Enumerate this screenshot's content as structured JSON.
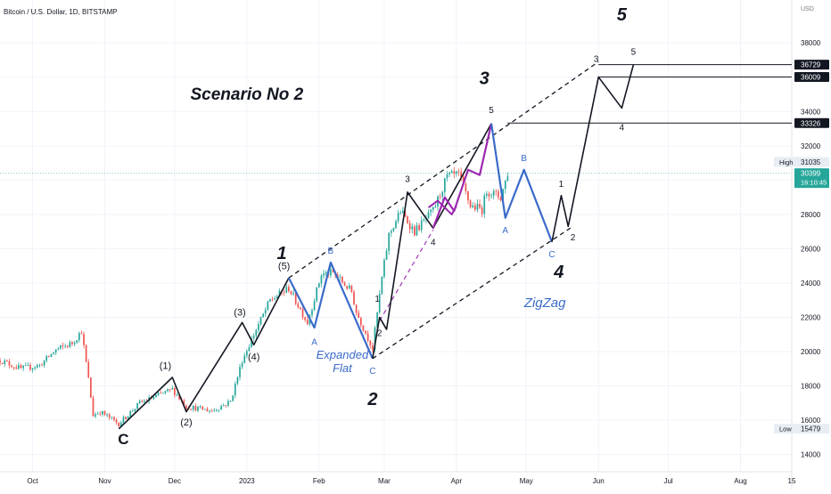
{
  "header": {
    "title": "Bitcoin / U.S. Dollar, 1D, BITSTAMP",
    "currency": "USD"
  },
  "chart_data": {
    "type": "candlestick",
    "title": "Bitcoin / U.S. Dollar, 1D, BITSTAMP",
    "xlim": [
      "2022-10-01",
      "2023-09-06"
    ],
    "ylim": [
      13000,
      40500
    ],
    "y_ticks": [
      14000,
      16000,
      18000,
      20000,
      22000,
      24000,
      26000,
      28000,
      30000,
      32000,
      34000,
      36000,
      38000
    ],
    "x_ticks": [
      {
        "date": "2022-10-15",
        "label": "Oct"
      },
      {
        "date": "2022-11-15",
        "label": "Nov"
      },
      {
        "date": "2022-12-15",
        "label": "Dec"
      },
      {
        "date": "2023-01-15",
        "label": "2023"
      },
      {
        "date": "2023-02-15",
        "label": "Feb"
      },
      {
        "date": "2023-03-15",
        "label": "Mar"
      },
      {
        "date": "2023-04-15",
        "label": "Apr"
      },
      {
        "date": "2023-05-15",
        "label": "May"
      },
      {
        "date": "2023-06-15",
        "label": "Jun"
      },
      {
        "date": "2023-07-15",
        "label": "Jul"
      },
      {
        "date": "2023-08-15",
        "label": "Aug"
      },
      {
        "date": "2023-09-06",
        "label": "15"
      }
    ],
    "price_anchors": [
      [
        "2022-10-01",
        19500
      ],
      [
        "2022-10-10",
        19000
      ],
      [
        "2022-10-18",
        19200
      ],
      [
        "2022-10-25",
        20100
      ],
      [
        "2022-11-01",
        20500
      ],
      [
        "2022-11-05",
        21200
      ],
      [
        "2022-11-08",
        18400
      ],
      [
        "2022-11-10",
        16300
      ],
      [
        "2022-11-13",
        16500
      ],
      [
        "2022-11-21",
        15800
      ],
      [
        "2022-11-30",
        17000
      ],
      [
        "2022-12-14",
        17800
      ],
      [
        "2022-12-20",
        16800
      ],
      [
        "2022-12-31",
        16550
      ],
      [
        "2023-01-08",
        17100
      ],
      [
        "2023-01-13",
        19500
      ],
      [
        "2023-01-18",
        21000
      ],
      [
        "2023-01-25",
        23000
      ],
      [
        "2023-02-02",
        23700
      ],
      [
        "2023-02-10",
        21700
      ],
      [
        "2023-02-16",
        24500
      ],
      [
        "2023-02-21",
        24600
      ],
      [
        "2023-03-01",
        23500
      ],
      [
        "2023-03-03",
        22300
      ],
      [
        "2023-03-10",
        20200
      ],
      [
        "2023-03-14",
        24300
      ],
      [
        "2023-03-17",
        26800
      ],
      [
        "2023-03-22",
        28200
      ],
      [
        "2023-03-28",
        27000
      ],
      [
        "2023-04-05",
        28200
      ],
      [
        "2023-04-11",
        30200
      ],
      [
        "2023-04-16",
        30300
      ],
      [
        "2023-04-21",
        28500
      ],
      [
        "2023-04-26",
        28300
      ],
      [
        "2023-04-28",
        29400
      ],
      [
        "2023-05-04",
        29000
      ],
      [
        "2023-05-07",
        30400
      ]
    ],
    "price_labels": [
      {
        "value": 36729,
        "label": "36729"
      },
      {
        "value": 36009,
        "label": "36009"
      },
      {
        "value": 33326,
        "label": "33326"
      },
      {
        "value": 30399,
        "label": "30399",
        "sub": "16:10:45",
        "current": true
      }
    ],
    "high": {
      "label": "High",
      "value": "31035"
    },
    "low": {
      "label": "Low",
      "value": "15479"
    },
    "horizontal_lines": [
      {
        "from": "2023-06-15",
        "value": 36729
      },
      {
        "from": "2023-06-15",
        "value": 36009
      },
      {
        "from": "2023-05-07",
        "value": 33326
      }
    ],
    "impulse_path": [
      [
        "2022-11-21",
        15500
      ],
      [
        "2022-12-14",
        18500
      ],
      [
        "2022-12-20",
        16500
      ],
      [
        "2023-01-13",
        21700
      ],
      [
        "2023-01-18",
        20400
      ],
      [
        "2023-02-02",
        24300
      ]
    ],
    "wave2_blue_path": [
      [
        "2023-02-02",
        24300
      ],
      [
        "2023-02-13",
        21400
      ],
      [
        "2023-02-20",
        25200
      ],
      [
        "2023-03-10",
        19600
      ]
    ],
    "wave3_path": [
      [
        "2023-03-10",
        19600
      ],
      [
        "2023-03-13",
        22000
      ],
      [
        "2023-03-16",
        21300
      ],
      [
        "2023-03-25",
        29300
      ],
      [
        "2023-04-05",
        27200
      ],
      [
        "2023-04-30",
        33300
      ]
    ],
    "purple_path": [
      [
        "2023-04-05",
        27200
      ],
      [
        "2023-04-10",
        29000
      ],
      [
        "2023-04-14",
        28200
      ],
      [
        "2023-04-20",
        30600
      ],
      [
        "2023-04-25",
        30300
      ],
      [
        "2023-04-30",
        33300
      ]
    ],
    "purple_small_path": [
      [
        "2023-04-03",
        28400
      ],
      [
        "2023-04-07",
        28800
      ],
      [
        "2023-04-13",
        28000
      ],
      [
        "2023-04-15",
        28500
      ]
    ],
    "abc_path": [
      [
        "2023-04-30",
        33300
      ],
      [
        "2023-05-06",
        27800
      ],
      [
        "2023-05-14",
        30600
      ],
      [
        "2023-05-26",
        26400
      ]
    ],
    "final_path": [
      [
        "2023-05-26",
        26400
      ],
      [
        "2023-05-30",
        29100
      ],
      [
        "2023-06-02",
        27300
      ],
      [
        "2023-06-15",
        36009
      ],
      [
        "2023-06-25",
        34200
      ],
      [
        "2023-06-30",
        36729
      ]
    ],
    "channel_lines": [
      {
        "from": [
          "2023-02-02",
          24300
        ],
        "to": [
          "2023-06-15",
          36900
        ],
        "dash": true
      },
      {
        "from": [
          "2023-03-10",
          19600
        ],
        "to": [
          "2023-06-04",
          27300
        ],
        "dash": true
      },
      {
        "from": [
          "2023-03-13",
          21800
        ],
        "to": [
          "2023-04-05",
          27100
        ],
        "dash": true,
        "color": "#9c27b0"
      }
    ],
    "annotations": [
      {
        "text": "Scenario No 2",
        "x": "2023-01-15",
        "y": 34700,
        "size": 19,
        "style": "italic",
        "weight": "bold",
        "color": "#131722"
      },
      {
        "text": "5",
        "x": "2023-06-25",
        "y": 39300,
        "size": 20,
        "style": "italic",
        "weight": "bold"
      },
      {
        "text": "3",
        "x": "2023-04-27",
        "y": 35600,
        "size": 20,
        "style": "italic",
        "weight": "bold"
      },
      {
        "text": "1",
        "x": "2023-01-30",
        "y": 25400,
        "size": 20,
        "style": "italic",
        "weight": "bold"
      },
      {
        "text": "2",
        "x": "2023-03-10",
        "y": 16900,
        "size": 20,
        "style": "italic",
        "weight": "bold"
      },
      {
        "text": "4",
        "x": "2023-05-29",
        "y": 24300,
        "size": 20,
        "style": "italic",
        "weight": "bold"
      },
      {
        "text": "C",
        "x": "2022-11-23",
        "y": 14600,
        "size": 17,
        "weight": "bold"
      },
      {
        "text": "ZigZag",
        "x": "2023-05-23",
        "y": 22600,
        "size": 15,
        "style": "italic",
        "color": "#3a6bc9"
      },
      {
        "text": "Expanded",
        "x": "2023-02-25",
        "y": 19600,
        "size": 13,
        "style": "italic",
        "color": "#3a6bc9"
      },
      {
        "text": "Flat",
        "x": "2023-02-25",
        "y": 18800,
        "size": 13,
        "style": "italic",
        "color": "#3a6bc9"
      },
      {
        "text": "(1)",
        "x": "2022-12-11",
        "y": 19000,
        "size": 11
      },
      {
        "text": "(2)",
        "x": "2022-12-20",
        "y": 15700,
        "size": 11
      },
      {
        "text": "(3)",
        "x": "2023-01-12",
        "y": 22100,
        "size": 11
      },
      {
        "text": "(4)",
        "x": "2023-01-18",
        "y": 19500,
        "size": 11
      },
      {
        "text": "(5)",
        "x": "2023-01-31",
        "y": 24800,
        "size": 11
      },
      {
        "text": "B",
        "x": "2023-02-20",
        "y": 25700,
        "size": 10,
        "color": "#3a6bc9"
      },
      {
        "text": "A",
        "x": "2023-02-13",
        "y": 20400,
        "size": 10,
        "color": "#3a6bc9"
      },
      {
        "text": "C",
        "x": "2023-03-10",
        "y": 18700,
        "size": 10,
        "color": "#3a6bc9"
      },
      {
        "text": "1",
        "x": "2023-03-12",
        "y": 22900,
        "size": 10
      },
      {
        "text": "2",
        "x": "2023-03-13",
        "y": 20900,
        "size": 10
      },
      {
        "text": "3",
        "x": "2023-03-25",
        "y": 29900,
        "size": 10
      },
      {
        "text": "4",
        "x": "2023-04-05",
        "y": 26200,
        "size": 10
      },
      {
        "text": "5",
        "x": "2023-04-30",
        "y": 33900,
        "size": 10
      },
      {
        "text": "A",
        "x": "2023-05-06",
        "y": 26900,
        "size": 10,
        "color": "#3a6bc9"
      },
      {
        "text": "B",
        "x": "2023-05-14",
        "y": 31100,
        "size": 10,
        "color": "#3a6bc9"
      },
      {
        "text": "C",
        "x": "2023-05-26",
        "y": 25500,
        "size": 10,
        "color": "#3a6bc9"
      },
      {
        "text": "1",
        "x": "2023-05-30",
        "y": 29600,
        "size": 10
      },
      {
        "text": "2",
        "x": "2023-06-04",
        "y": 26500,
        "size": 10
      },
      {
        "text": "3",
        "x": "2023-06-14",
        "y": 36900,
        "size": 10
      },
      {
        "text": "4",
        "x": "2023-06-25",
        "y": 32900,
        "size": 10
      },
      {
        "text": "5",
        "x": "2023-06-30",
        "y": 37300,
        "size": 10
      }
    ]
  }
}
